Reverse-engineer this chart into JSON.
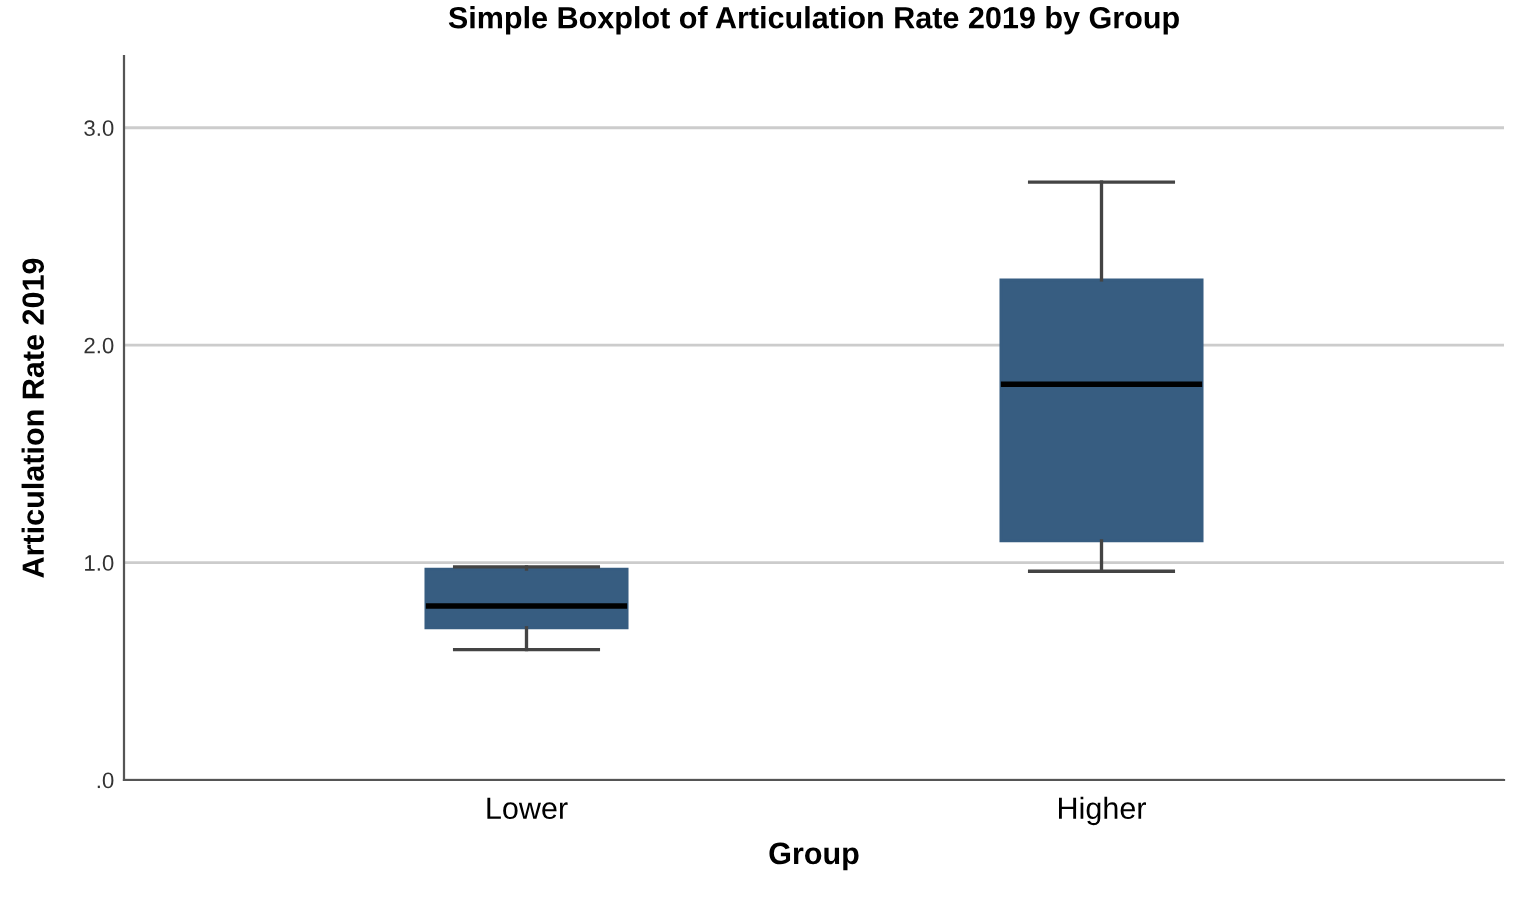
{
  "chart_data": {
    "type": "box",
    "title": "Simple Boxplot of Articulation Rate 2019 by Group",
    "xlabel": "Group",
    "ylabel": "Articulation Rate 2019",
    "categories": [
      "Lower",
      "Higher"
    ],
    "boxes": [
      {
        "low": 0.6,
        "q1": 0.7,
        "median": 0.8,
        "q3": 0.97,
        "high": 0.98
      },
      {
        "low": 0.96,
        "q1": 1.1,
        "median": 1.82,
        "q3": 2.3,
        "high": 2.75
      }
    ],
    "color": "#375d81",
    "ylim": [
      0,
      3.33
    ],
    "yticks": [
      {
        "value": 0,
        "label": ".0"
      },
      {
        "value": 1,
        "label": "1.0"
      },
      {
        "value": 2,
        "label": "2.0"
      },
      {
        "value": 3,
        "label": "3.0"
      }
    ],
    "grid": "y"
  }
}
